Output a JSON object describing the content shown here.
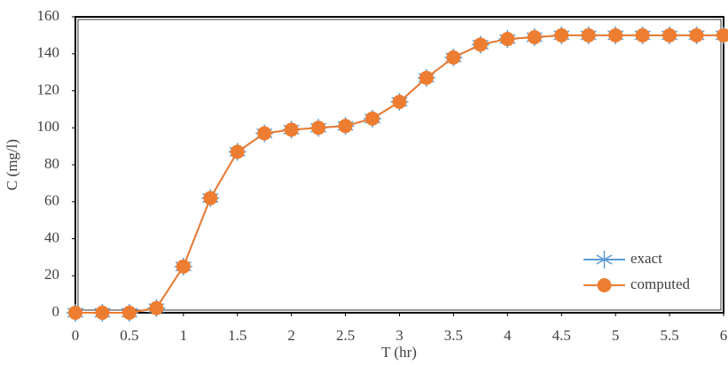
{
  "chart_data": {
    "type": "line",
    "xlabel": "T (hr)",
    "ylabel": "C (mg/l)",
    "x": [
      0,
      0.25,
      0.5,
      0.75,
      1,
      1.25,
      1.5,
      1.75,
      2,
      2.25,
      2.5,
      2.75,
      3,
      3.25,
      3.5,
      3.75,
      4,
      4.25,
      4.5,
      4.75,
      5,
      5.25,
      5.5,
      5.75,
      6
    ],
    "series": [
      {
        "name": "exact",
        "color": "#5b9bd5",
        "marker": "asterisk",
        "values": [
          0,
          0,
          0,
          2.5,
          25,
          62,
          87,
          97,
          99,
          100,
          101,
          105,
          114,
          127,
          138,
          145,
          148,
          149,
          150,
          150,
          150,
          150,
          150,
          150,
          150
        ]
      },
      {
        "name": "computed",
        "color": "#ed7d31",
        "marker": "circle",
        "values": [
          0,
          0,
          0,
          2.5,
          25,
          62,
          87,
          97,
          99,
          100,
          101,
          105,
          114,
          127,
          138,
          145,
          148,
          149,
          150,
          150,
          150,
          150,
          150,
          150,
          150
        ]
      }
    ],
    "xlim": [
      0,
      6
    ],
    "xticks": [
      0,
      0.5,
      1,
      1.5,
      2,
      2.5,
      3,
      3.5,
      4,
      4.5,
      5,
      5.5,
      6
    ],
    "ylim": [
      0,
      160
    ],
    "yticks": [
      0,
      20,
      40,
      60,
      80,
      100,
      120,
      140,
      160
    ],
    "legend": "lower right"
  }
}
